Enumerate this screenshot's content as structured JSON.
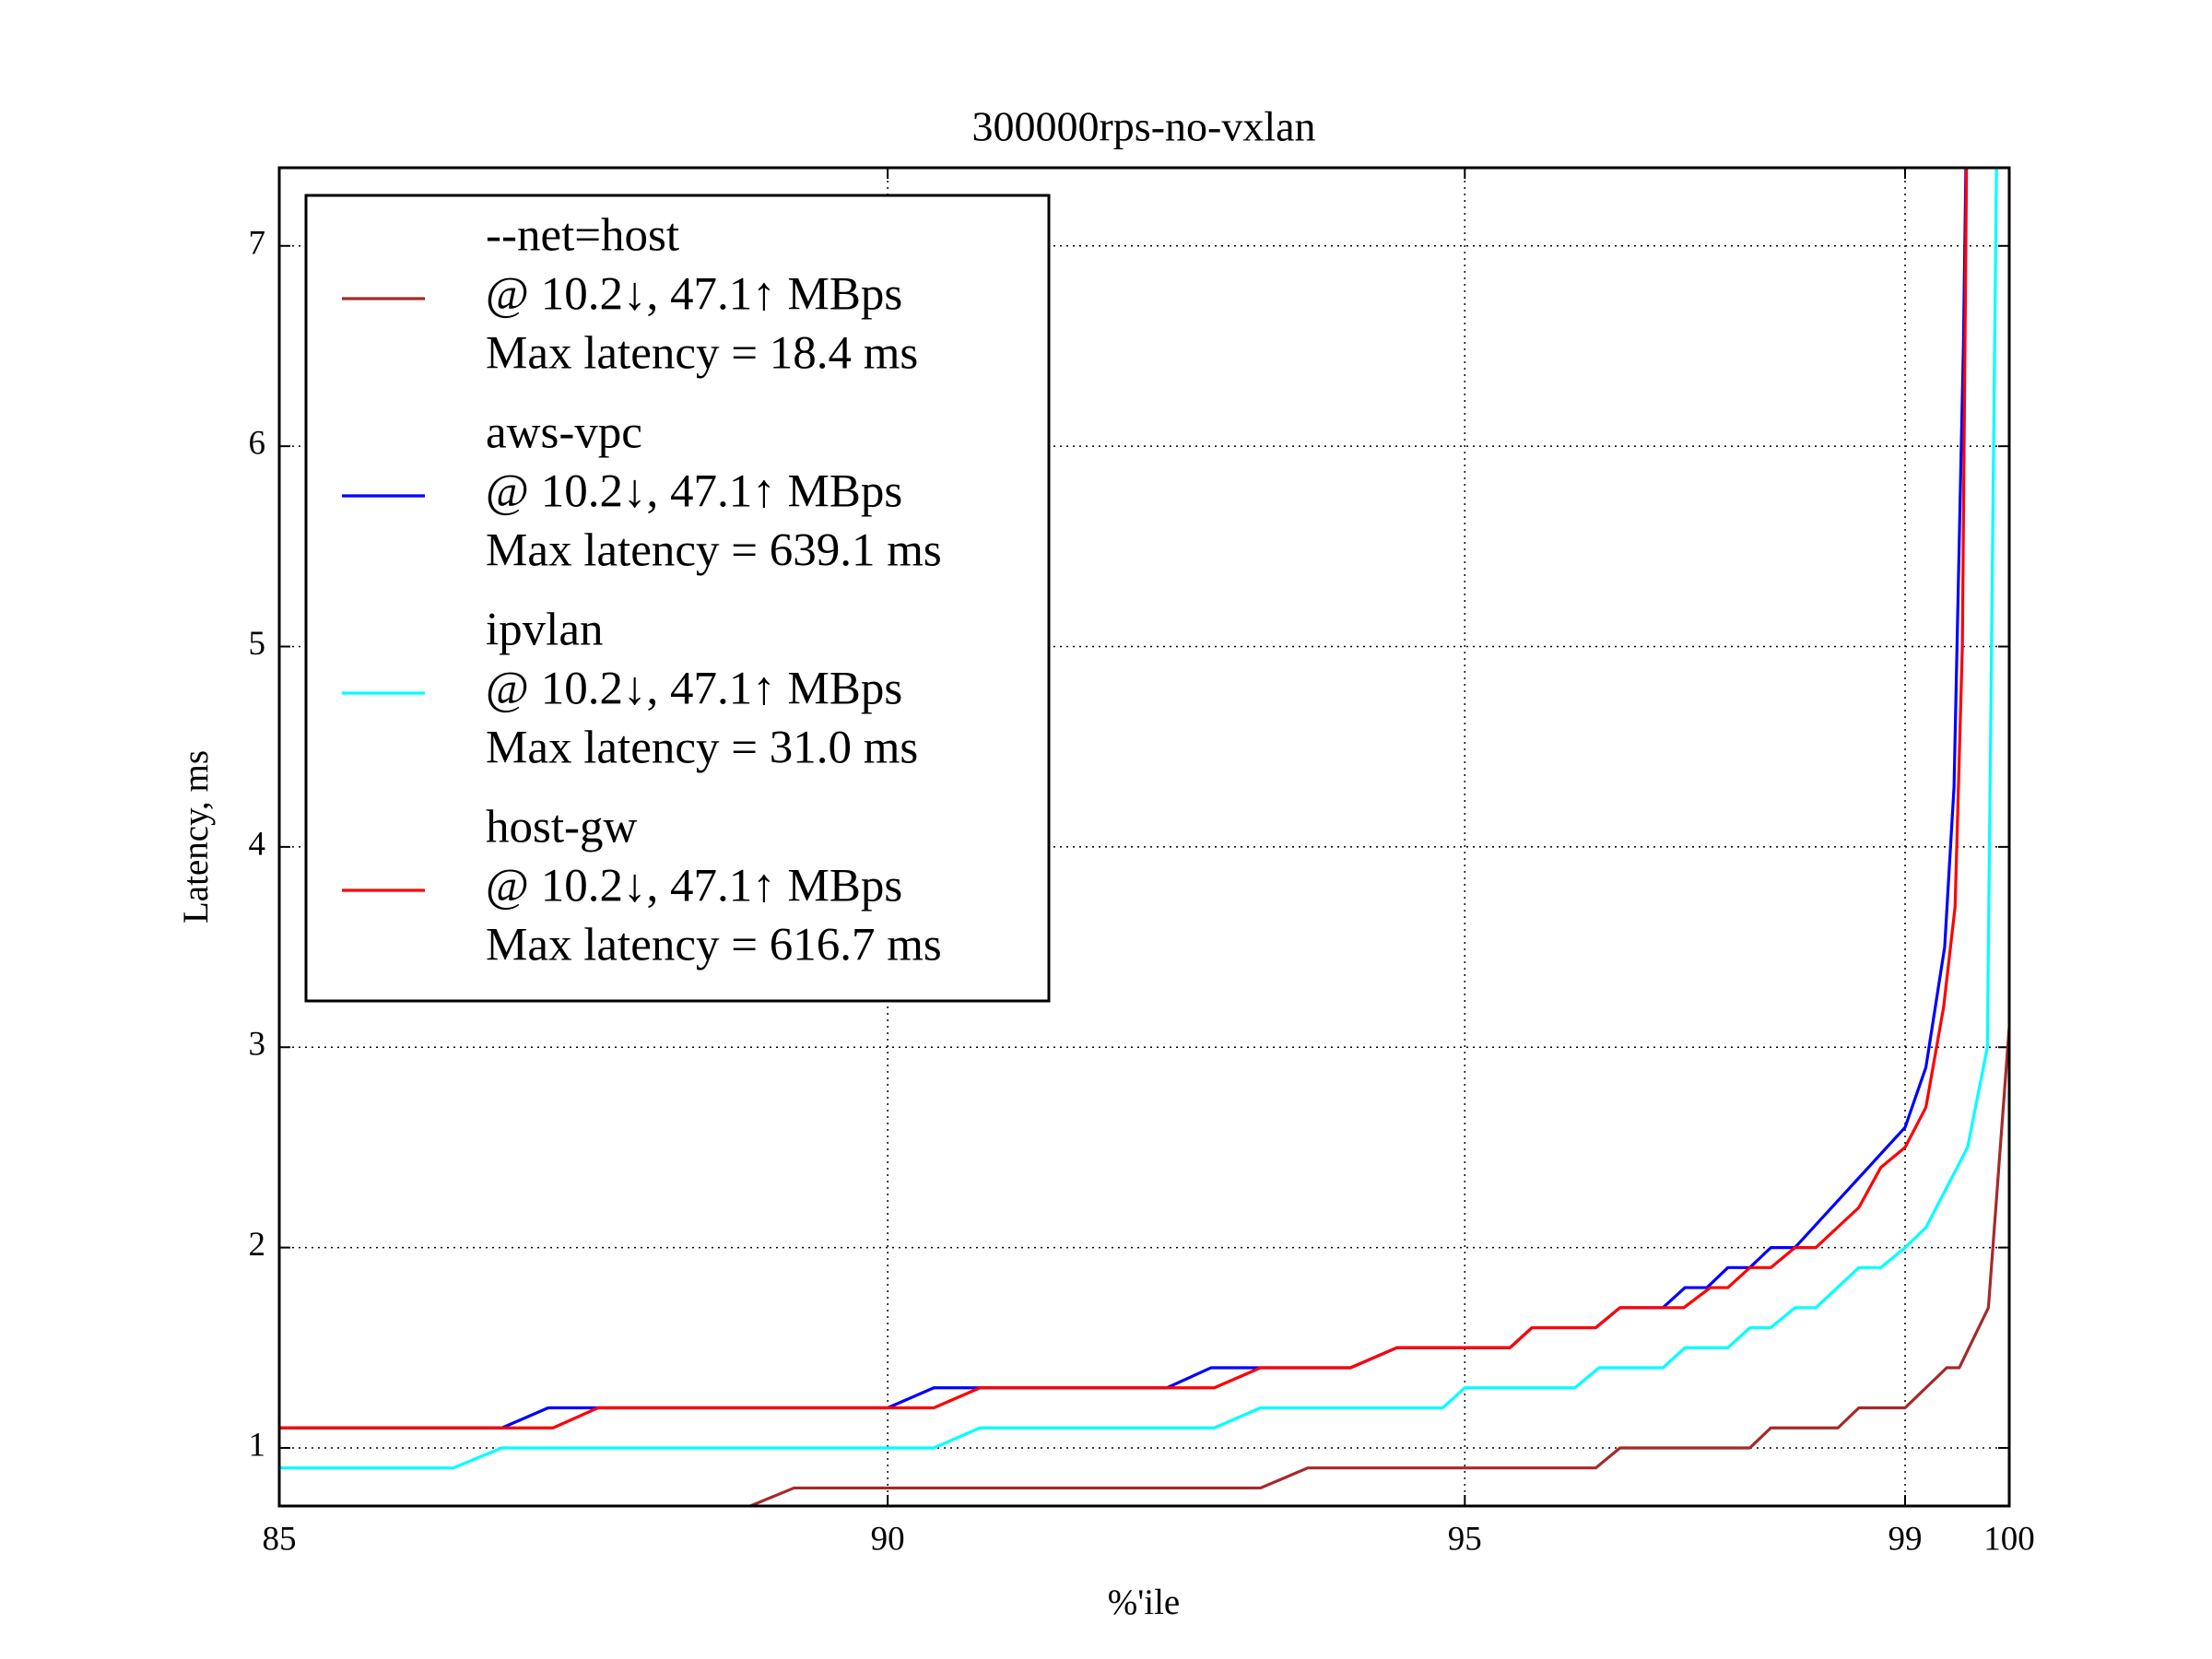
{
  "chart_data": {
    "type": "line",
    "title": "300000rps-no-vxlan",
    "x_label": "%'ile",
    "y_label": "Latency, ms",
    "xlim": [
      85,
      100
    ],
    "xticks": [
      85,
      90,
      95,
      99,
      100
    ],
    "ylim": [
      0.71,
      7.39
    ],
    "yticks": [
      1,
      2,
      3,
      4,
      5,
      6,
      7
    ],
    "grid": true,
    "legend": "upper left",
    "series": [
      {
        "name": "--net=host",
        "throughput": "@ 10.2↓, 47.1↑ MBps",
        "max_latency": "Max latency = 18.4 ms",
        "color": "#a52a2a",
        "x": [
          88.83,
          89.23,
          93.23,
          93.64,
          96.19,
          96.41,
          97.59,
          97.78,
          98.39,
          98.58,
          99.0,
          99.4,
          99.52,
          99.8,
          100
        ],
        "values": [
          0.7,
          0.8,
          0.8,
          0.9,
          0.9,
          1.0,
          1.0,
          1.1,
          1.1,
          1.2,
          1.2,
          1.4,
          1.4,
          1.7,
          3.1
        ]
      },
      {
        "name": "aws-vpc",
        "throughput": "@ 10.2↓, 47.1↑ MBps",
        "max_latency": "Max latency = 639.1 ms",
        "color": "#0000ff",
        "x": [
          85,
          86.83,
          87.21,
          90.0,
          90.4,
          92.42,
          92.8,
          94.01,
          94.41,
          95.41,
          95.61,
          96.19,
          96.41,
          96.8,
          97.0,
          97.2,
          97.39,
          97.59,
          97.78,
          98.0,
          99.0,
          99.2,
          99.38,
          99.47,
          99.56,
          99.6
        ],
        "values": [
          1.1,
          1.1,
          1.2,
          1.2,
          1.3,
          1.3,
          1.4,
          1.4,
          1.5,
          1.5,
          1.6,
          1.6,
          1.7,
          1.7,
          1.8,
          1.8,
          1.9,
          1.9,
          2.0,
          2.0,
          2.6,
          2.9,
          3.5,
          4.3,
          6.5,
          8
        ]
      },
      {
        "name": "ipvlan",
        "throughput": "@ 10.2↓, 47.1↑ MBps",
        "max_latency": "Max latency = 31.0 ms",
        "color": "#00ffff",
        "x": [
          85,
          86.43,
          86.83,
          90.4,
          90.8,
          92.83,
          93.23,
          94.81,
          95.0,
          96.0,
          96.22,
          96.8,
          97.0,
          97.39,
          97.59,
          97.78,
          98.0,
          98.19,
          98.58,
          98.78,
          99.0,
          99.2,
          99.6,
          99.79,
          99.88
        ],
        "values": [
          0.9,
          0.9,
          1.0,
          1.0,
          1.1,
          1.1,
          1.2,
          1.2,
          1.3,
          1.3,
          1.4,
          1.4,
          1.5,
          1.5,
          1.6,
          1.6,
          1.7,
          1.7,
          1.9,
          1.9,
          2.0,
          2.1,
          2.5,
          3.0,
          7.5
        ]
      },
      {
        "name": "host-gw",
        "throughput": "@ 10.2↓, 47.1↑ MBps",
        "max_latency": "Max latency = 616.7 ms",
        "color": "#ff0000",
        "x": [
          85,
          87.25,
          87.62,
          90.4,
          90.8,
          92.83,
          93.23,
          94.01,
          94.41,
          95.41,
          95.61,
          96.19,
          96.41,
          96.99,
          97.23,
          97.39,
          97.59,
          97.78,
          98.0,
          98.19,
          98.58,
          98.78,
          99.0,
          99.2,
          99.37,
          99.48,
          99.55,
          99.6
        ],
        "values": [
          1.1,
          1.1,
          1.2,
          1.2,
          1.3,
          1.3,
          1.4,
          1.4,
          1.5,
          1.5,
          1.6,
          1.6,
          1.7,
          1.7,
          1.8,
          1.8,
          1.9,
          1.9,
          2.0,
          2.0,
          2.2,
          2.4,
          2.5,
          2.7,
          3.2,
          3.7,
          5.0,
          8
        ]
      }
    ]
  }
}
